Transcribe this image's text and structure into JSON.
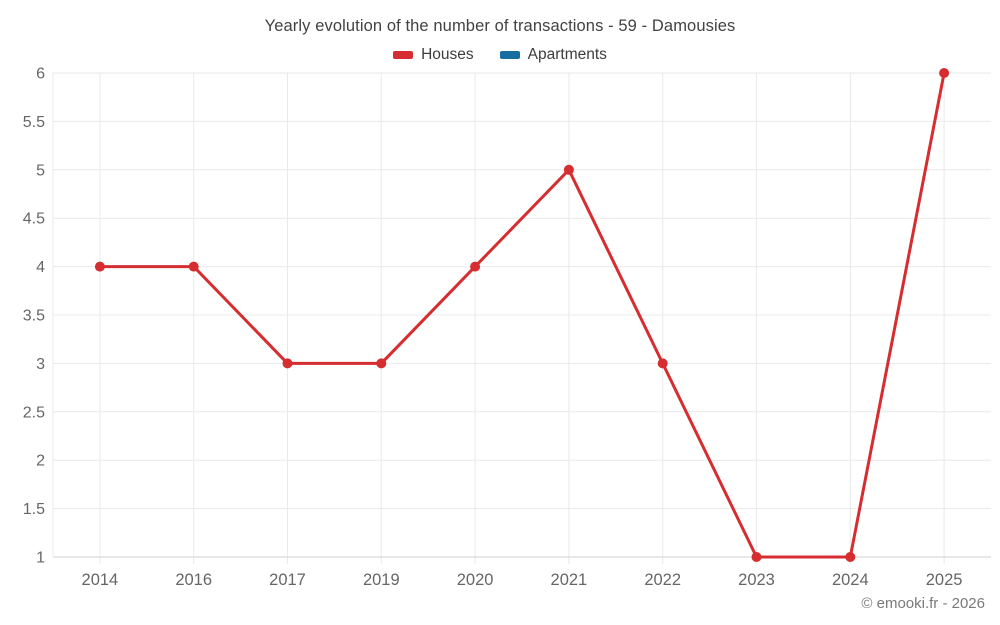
{
  "chart_data": {
    "type": "line",
    "title": "Yearly evolution of the number of transactions - 59 - Damousies",
    "categories": [
      "2014",
      "2016",
      "2017",
      "2019",
      "2020",
      "2021",
      "2022",
      "2023",
      "2024",
      "2025"
    ],
    "series": [
      {
        "name": "Houses",
        "color": "#d62d30",
        "values": [
          4,
          4,
          3,
          3,
          4,
          5,
          3,
          1,
          1,
          6
        ]
      },
      {
        "name": "Apartments",
        "color": "#176ca0",
        "values": null
      }
    ],
    "xlabel": "",
    "ylabel": "",
    "ylim": [
      1,
      6
    ],
    "ytick_step": 0.5,
    "grid": true,
    "legend_position": "top",
    "marker": "circle"
  },
  "footer": {
    "credit": "© emooki.fr - 2026"
  },
  "theme": {
    "background": "#ffffff",
    "grid_color": "#e9e9e9",
    "axis_color": "#d2d2d2",
    "tick_label_color": "#666666",
    "title_color": "#424242",
    "legend_text_color": "#3d3d3d",
    "footer_text_color": "#7a7a7a"
  }
}
